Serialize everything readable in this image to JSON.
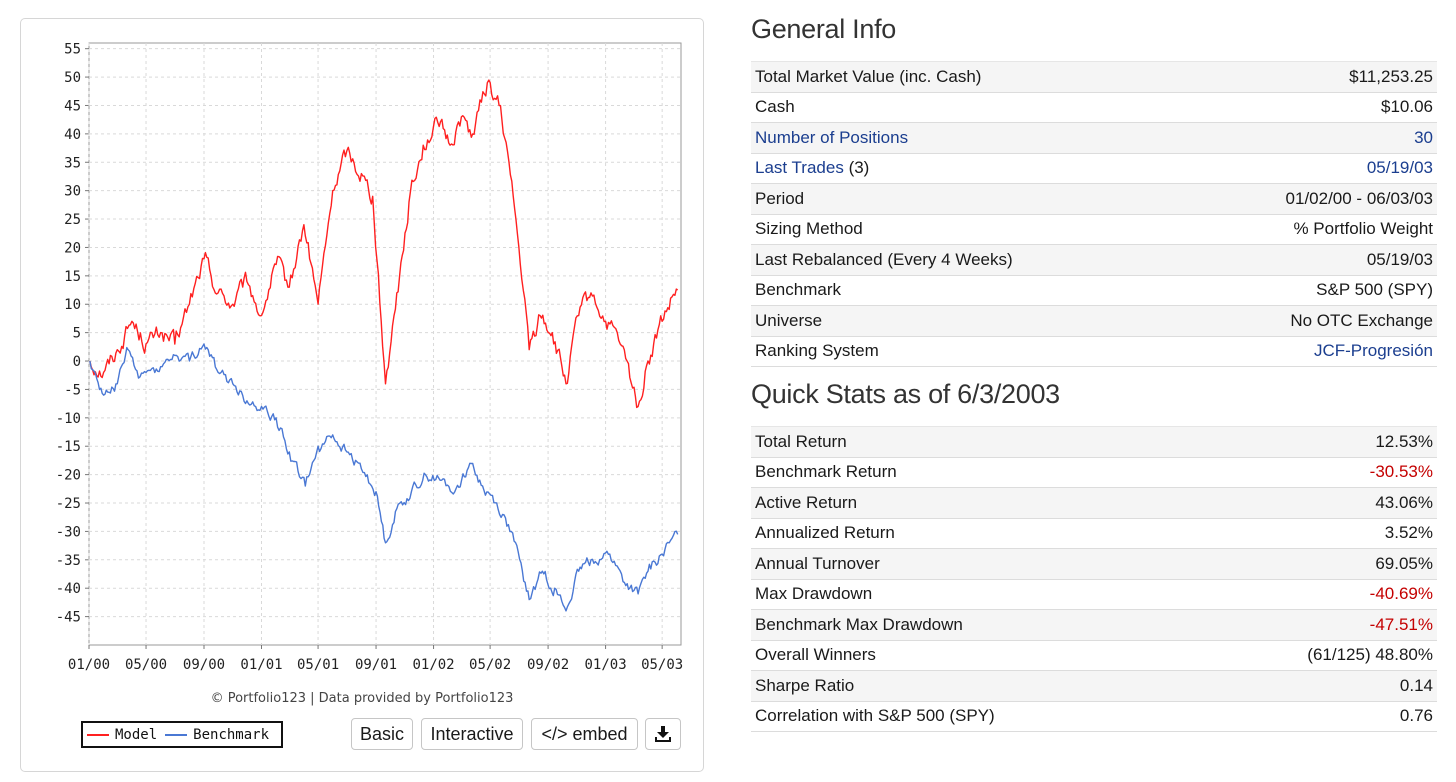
{
  "chart_data": {
    "type": "line",
    "x_ticks": [
      "01/00",
      "05/00",
      "09/00",
      "01/01",
      "05/01",
      "09/01",
      "01/02",
      "05/02",
      "09/02",
      "01/03",
      "05/03"
    ],
    "y_ticks": [
      55,
      50,
      45,
      40,
      35,
      30,
      25,
      20,
      15,
      10,
      5,
      0,
      -5,
      -10,
      -15,
      -20,
      -25,
      -30,
      -35,
      -40,
      -45
    ],
    "ylim": [
      -50,
      56
    ],
    "xlim": [
      "2000-01-01",
      "2003-06-10"
    ],
    "grid": true,
    "legend_position": "bottom-left",
    "series": [
      {
        "name": "Model",
        "color": "#ff2020",
        "points": [
          [
            "2000-01-03",
            0
          ],
          [
            "2000-02-01",
            -2
          ],
          [
            "2000-03-01",
            2
          ],
          [
            "2000-04-01",
            7
          ],
          [
            "2000-05-01",
            3
          ],
          [
            "2000-06-01",
            5
          ],
          [
            "2000-07-01",
            3
          ],
          [
            "2000-08-01",
            10
          ],
          [
            "2000-09-01",
            18
          ],
          [
            "2000-10-01",
            12
          ],
          [
            "2000-11-01",
            10
          ],
          [
            "2000-12-01",
            14
          ],
          [
            "2001-01-01",
            8
          ],
          [
            "2001-02-01",
            17
          ],
          [
            "2001-03-01",
            13
          ],
          [
            "2001-04-01",
            24
          ],
          [
            "2001-05-01",
            10
          ],
          [
            "2001-06-01",
            30
          ],
          [
            "2001-07-01",
            37
          ],
          [
            "2001-08-01",
            33
          ],
          [
            "2001-08-25",
            29
          ],
          [
            "2001-09-21",
            -4
          ],
          [
            "2001-10-15",
            12
          ],
          [
            "2001-11-10",
            28
          ],
          [
            "2001-12-10",
            38
          ],
          [
            "2002-01-10",
            42
          ],
          [
            "2002-02-05",
            38
          ],
          [
            "2002-03-01",
            43
          ],
          [
            "2002-03-25",
            40
          ],
          [
            "2002-04-25",
            49
          ],
          [
            "2002-05-20",
            45
          ],
          [
            "2002-06-10",
            35
          ],
          [
            "2002-07-01",
            20
          ],
          [
            "2002-07-23",
            2
          ],
          [
            "2002-08-15",
            8
          ],
          [
            "2002-09-10",
            5
          ],
          [
            "2002-10-09",
            -4
          ],
          [
            "2002-11-05",
            8
          ],
          [
            "2002-12-01",
            12
          ],
          [
            "2003-01-01",
            7
          ],
          [
            "2003-02-01",
            3
          ],
          [
            "2003-03-11",
            -8
          ],
          [
            "2003-04-01",
            0
          ],
          [
            "2003-05-01",
            7
          ],
          [
            "2003-06-03",
            12.53
          ]
        ]
      },
      {
        "name": "Benchmark",
        "color": "#4a78d4",
        "points": [
          [
            "2000-01-03",
            0
          ],
          [
            "2000-02-01",
            -6
          ],
          [
            "2000-03-01",
            -4
          ],
          [
            "2000-03-24",
            2
          ],
          [
            "2000-04-15",
            -3
          ],
          [
            "2000-05-01",
            -2
          ],
          [
            "2000-06-01",
            -1
          ],
          [
            "2000-07-01",
            1
          ],
          [
            "2000-08-01",
            0
          ],
          [
            "2000-09-01",
            3
          ],
          [
            "2000-10-01",
            -2
          ],
          [
            "2000-11-01",
            -4
          ],
          [
            "2000-12-01",
            -7
          ],
          [
            "2001-01-01",
            -8
          ],
          [
            "2001-02-01",
            -10
          ],
          [
            "2001-03-01",
            -16
          ],
          [
            "2001-04-04",
            -22
          ],
          [
            "2001-05-01",
            -15
          ],
          [
            "2001-06-01",
            -13
          ],
          [
            "2001-07-01",
            -16
          ],
          [
            "2001-08-01",
            -19
          ],
          [
            "2001-09-01",
            -23
          ],
          [
            "2001-09-21",
            -32
          ],
          [
            "2001-10-15",
            -26
          ],
          [
            "2001-11-15",
            -23
          ],
          [
            "2001-12-15",
            -20
          ],
          [
            "2002-01-15",
            -21
          ],
          [
            "2002-02-15",
            -23
          ],
          [
            "2002-03-19",
            -18
          ],
          [
            "2002-04-15",
            -22
          ],
          [
            "2002-05-15",
            -25
          ],
          [
            "2002-06-15",
            -30
          ],
          [
            "2002-07-23",
            -42
          ],
          [
            "2002-08-20",
            -37
          ],
          [
            "2002-09-15",
            -40
          ],
          [
            "2002-10-09",
            -44
          ],
          [
            "2002-11-05",
            -37
          ],
          [
            "2002-12-01",
            -35
          ],
          [
            "2003-01-10",
            -34
          ],
          [
            "2003-02-10",
            -39
          ],
          [
            "2003-03-11",
            -41
          ],
          [
            "2003-04-01",
            -37
          ],
          [
            "2003-05-01",
            -34
          ],
          [
            "2003-06-03",
            -30.53
          ]
        ]
      }
    ]
  },
  "chart_panel": {
    "credit": "© Portfolio123 | Data provided by Portfolio123",
    "legend": {
      "model": "Model",
      "benchmark": "Benchmark"
    },
    "buttons": {
      "basic": "Basic",
      "interactive": "Interactive",
      "embed": "</> embed",
      "download_icon": "download-icon"
    }
  },
  "general_info": {
    "title": "General Info",
    "rows": [
      {
        "label": "Total Market Value (inc. Cash)",
        "value": "$11,253.25"
      },
      {
        "label": "Cash",
        "value": "$10.06"
      },
      {
        "label": "Number of Positions",
        "value": "30"
      },
      {
        "label": "Last Trades",
        "label_suffix": "(3)",
        "value": "05/19/03"
      },
      {
        "label": "Period",
        "value": "01/02/00 - 06/03/03"
      },
      {
        "label": "Sizing Method",
        "value": "% Portfolio Weight"
      },
      {
        "label": "Last Rebalanced (Every 4 Weeks)",
        "value": "05/19/03"
      },
      {
        "label": "Benchmark",
        "value": "S&P 500 (SPY)"
      },
      {
        "label": "Universe",
        "value": "No OTC Exchange"
      },
      {
        "label": "Ranking System",
        "value": "JCF-Progresión"
      }
    ]
  },
  "quick_stats": {
    "title": "Quick Stats as of 6/3/2003",
    "rows": [
      {
        "label": "Total Return",
        "value": "12.53%"
      },
      {
        "label": "Benchmark Return",
        "value": "-30.53%"
      },
      {
        "label": "Active Return",
        "value": "43.06%"
      },
      {
        "label": "Annualized Return",
        "value": "3.52%"
      },
      {
        "label": "Annual Turnover",
        "value": "69.05%"
      },
      {
        "label": "Max Drawdown",
        "value": "-40.69%"
      },
      {
        "label": "Benchmark Max Drawdown",
        "value": "-47.51%"
      },
      {
        "label": "Overall Winners",
        "value": "(61/125) 48.80%"
      },
      {
        "label": "Sharpe Ratio",
        "value": "0.14"
      },
      {
        "label": "Correlation with S&P 500 (SPY)",
        "value": "0.76"
      }
    ]
  },
  "colors": {
    "link": "#1b3e8f",
    "negative": "#c40000"
  }
}
